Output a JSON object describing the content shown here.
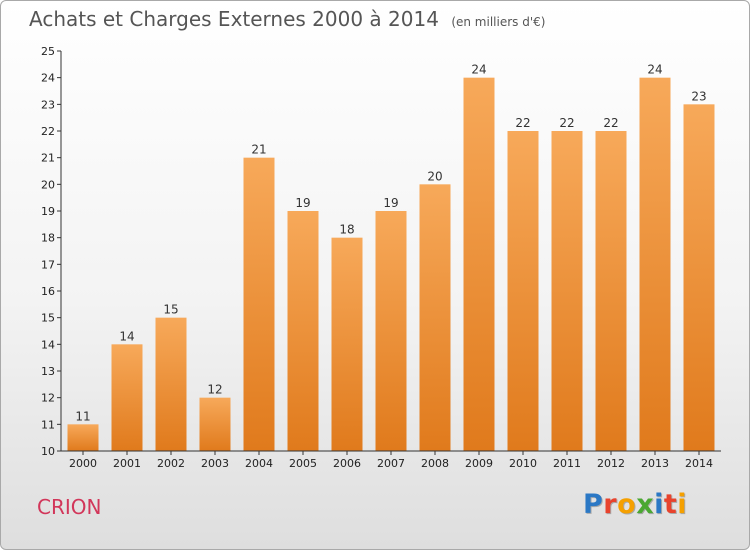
{
  "header": {
    "title": "Achats et Charges Externes 2000 à 2014",
    "subtitle": "(en milliers d'€)"
  },
  "footer": {
    "commune": "CRION",
    "logo_text": "Proxiti",
    "logo_colors": [
      "#2b78c5",
      "#e8432d",
      "#f5a000",
      "#4aa832",
      "#2b78c5",
      "#e8432d",
      "#f5a000"
    ]
  },
  "colors": {
    "bar_light": "#f7a95a",
    "bar_dark": "#e07a1c",
    "commune_text": "#d2365a"
  },
  "chart_data": {
    "type": "bar",
    "title": "Achats et Charges Externes 2000 à 2014",
    "subtitle": "(en milliers d'€)",
    "xlabel": "",
    "ylabel": "",
    "categories": [
      "2000",
      "2001",
      "2002",
      "2003",
      "2004",
      "2005",
      "2006",
      "2007",
      "2008",
      "2009",
      "2010",
      "2011",
      "2012",
      "2013",
      "2014"
    ],
    "values": [
      11,
      14,
      15,
      12,
      21,
      19,
      18,
      19,
      20,
      24,
      22,
      22,
      22,
      24,
      23
    ],
    "ylim": [
      10,
      25
    ],
    "yticks": [
      10,
      11,
      12,
      13,
      14,
      15,
      16,
      17,
      18,
      19,
      20,
      21,
      22,
      23,
      24,
      25
    ],
    "grid": false,
    "legend": "none"
  }
}
